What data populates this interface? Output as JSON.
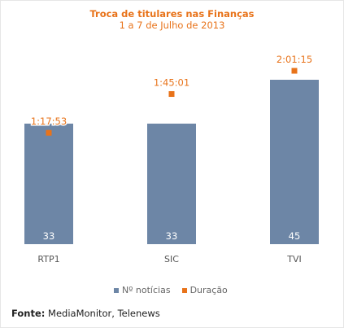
{
  "chart_data": {
    "type": "bar",
    "title": "Troca de titulares nas Finanças",
    "subtitle": "1 a 7 de Julho de 2013",
    "categories": [
      "RTP1",
      "SIC",
      "TVI"
    ],
    "series": [
      {
        "name": "Nº notícias",
        "values": [
          33,
          33,
          45
        ],
        "color": "#6d86a6",
        "kind": "bar"
      },
      {
        "name": "Duração",
        "values": [
          "1:17:53",
          "1:45:01",
          "2:01:15"
        ],
        "seconds": [
          4673,
          6301,
          7275
        ],
        "color": "#e8731a",
        "kind": "point"
      }
    ],
    "legend_position": "bottom",
    "grid": false
  },
  "source": {
    "label": "Fonte:",
    "text": "MediaMonitor, Telenews"
  }
}
